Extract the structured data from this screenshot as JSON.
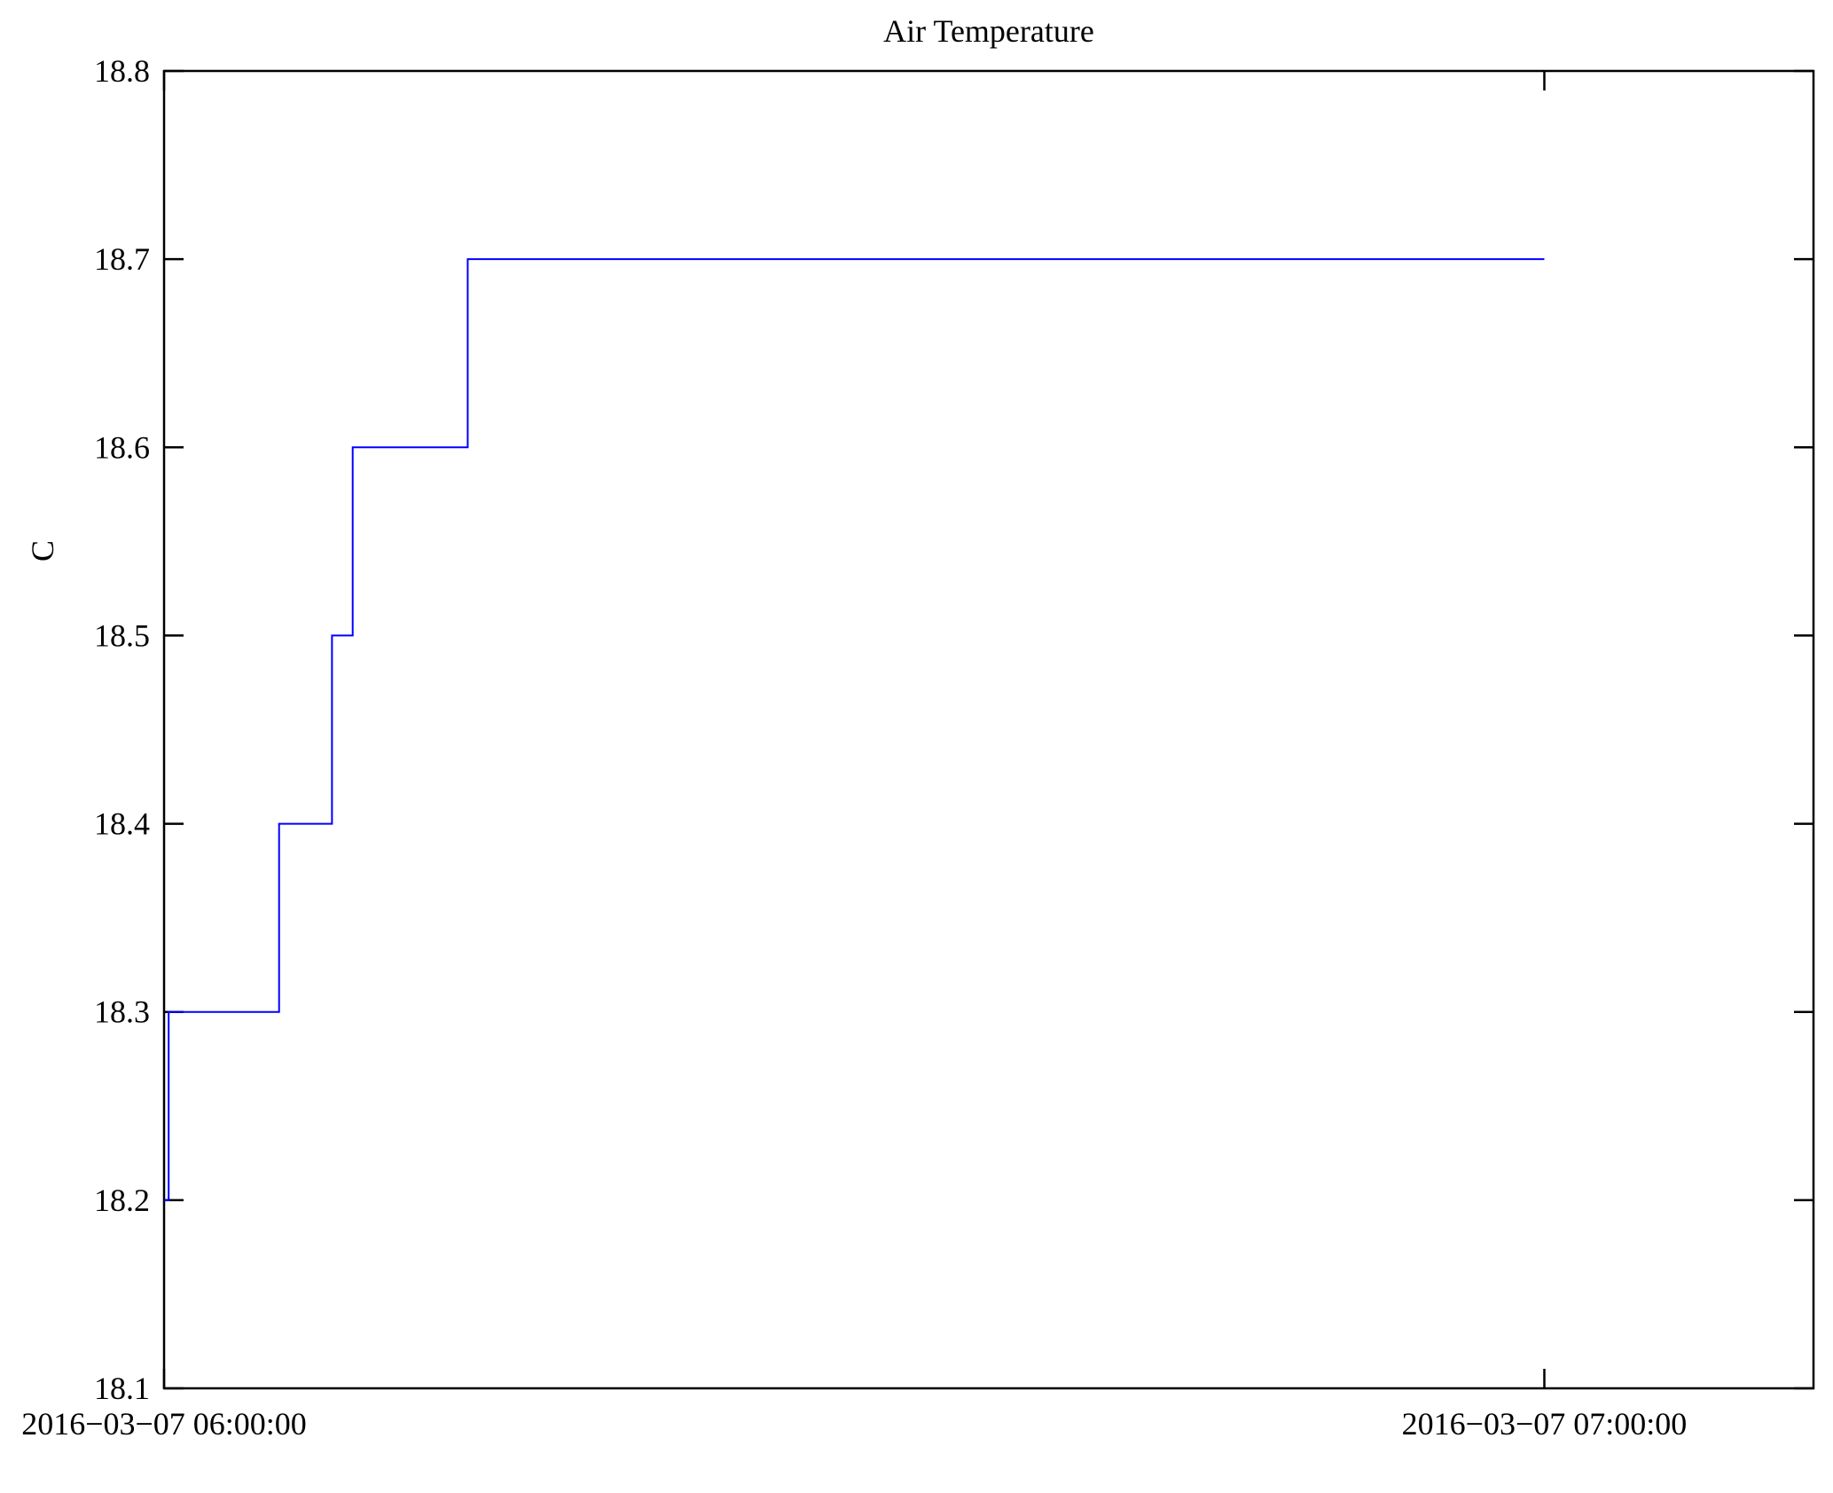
{
  "page": {
    "background": "#ffffff"
  },
  "chart_data": {
    "type": "line",
    "title": "Air Temperature",
    "ylabel": "C",
    "xlabel": "",
    "line_color": "#0000ff",
    "axis_color": "#000000",
    "grid": false,
    "legend": "none",
    "ylim": [
      18.1,
      18.8
    ],
    "yticks": [
      18.1,
      18.2,
      18.3,
      18.4,
      18.5,
      18.6,
      18.7,
      18.8
    ],
    "xlim_minutes": [
      0,
      71.7
    ],
    "xticks": [
      {
        "minutes": 0,
        "label": "2016−03−07 06:00:00"
      },
      {
        "minutes": 60,
        "label": "2016−03−07 07:00:00"
      }
    ],
    "series": [
      {
        "name": "Air Temperature (C)",
        "step_mode": "step-after",
        "points": [
          {
            "t_minutes": 0.0,
            "value": 18.2
          },
          {
            "t_minutes": 0.2,
            "value": 18.3
          },
          {
            "t_minutes": 5.0,
            "value": 18.4
          },
          {
            "t_minutes": 7.3,
            "value": 18.5
          },
          {
            "t_minutes": 8.2,
            "value": 18.6
          },
          {
            "t_minutes": 13.2,
            "value": 18.7
          },
          {
            "t_minutes": 60.0,
            "value": 18.7
          }
        ]
      }
    ]
  }
}
